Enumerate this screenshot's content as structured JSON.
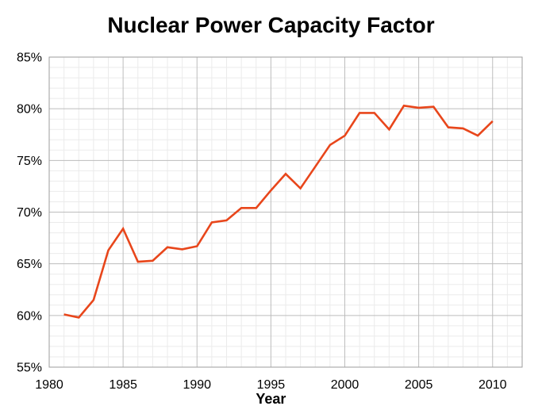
{
  "title": "Nuclear Power Capacity Factor",
  "colors": {
    "line": "#E8461B",
    "minor_grid": "#EBEBEB",
    "major_grid": "#BDBDBD",
    "plot_border": "#9E9E9E",
    "text": "#000000"
  },
  "chart_data": {
    "type": "line",
    "title": "Nuclear Power Capacity Factor",
    "xlabel": "Year",
    "ylabel": "",
    "x": [
      1981,
      1982,
      1983,
      1984,
      1985,
      1986,
      1987,
      1988,
      1989,
      1990,
      1991,
      1992,
      1993,
      1994,
      1995,
      1996,
      1997,
      1998,
      1999,
      2000,
      2001,
      2002,
      2003,
      2004,
      2005,
      2006,
      2007,
      2008,
      2009,
      2010
    ],
    "values": [
      60.1,
      59.8,
      61.5,
      66.3,
      68.4,
      65.2,
      65.3,
      66.6,
      66.4,
      66.7,
      69.0,
      69.2,
      70.4,
      70.4,
      72.1,
      73.7,
      72.3,
      74.4,
      76.5,
      77.4,
      79.6,
      79.6,
      78.0,
      80.3,
      80.1,
      80.2,
      78.2,
      78.1,
      77.4,
      78.8
    ],
    "xlim": [
      1980,
      2012
    ],
    "ylim": [
      55,
      85
    ],
    "x_major_ticks": [
      1980,
      1985,
      1990,
      1995,
      2000,
      2005,
      2010
    ],
    "y_major_ticks": [
      55,
      60,
      65,
      70,
      75,
      80,
      85
    ],
    "x_minor_step": 1,
    "y_minor_step": 1,
    "y_tick_suffix": "%",
    "grid": true,
    "legend_position": "none"
  }
}
